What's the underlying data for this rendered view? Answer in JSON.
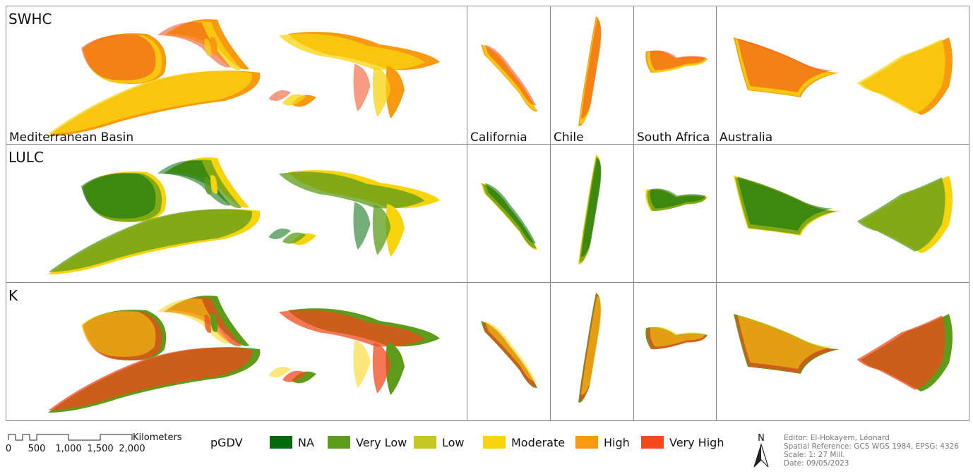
{
  "rows": [
    "SWHC",
    "LULC",
    "K"
  ],
  "regions": [
    "Mediterranean Basin",
    "California",
    "Chile",
    "South Africa",
    "Australia"
  ],
  "scale_bar": {
    "unit": "Kilometers",
    "ticks": [
      "0",
      "500",
      "1,000",
      "1,500",
      "2,000"
    ]
  },
  "legend": {
    "title": "pGDV",
    "items": [
      {
        "label": "NA",
        "color": "#036b0b"
      },
      {
        "label": "Very Low",
        "color": "#5c9c1a"
      },
      {
        "label": "Low",
        "color": "#c5c91f"
      },
      {
        "label": "Moderate",
        "color": "#f7d40c"
      },
      {
        "label": "High",
        "color": "#f79a12"
      },
      {
        "label": "Very High",
        "color": "#f2491d"
      }
    ]
  },
  "north": "N",
  "credits": [
    "Editor: El-Hokayem, Léonard",
    "Spatial Reference: GCS WGS 1984, EPSG: 4326",
    "Scale: 1: 27 Mill.",
    "Date: 09/05/2023"
  ]
}
